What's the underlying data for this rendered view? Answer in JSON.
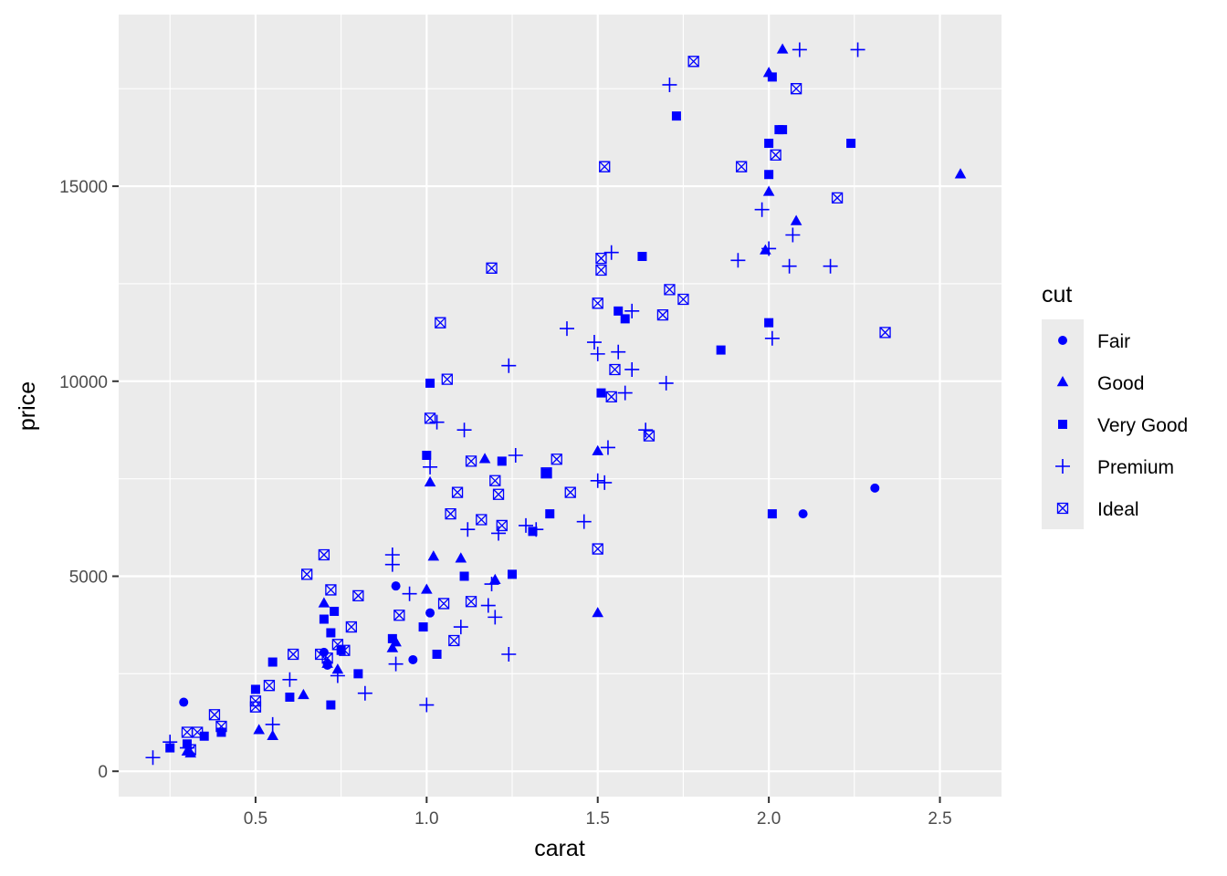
{
  "colors": {
    "panel": "#EBEBEB",
    "grid": "#FFFFFF",
    "point": "#0000FF",
    "tick": "#333333"
  },
  "chart_data": {
    "type": "scatter",
    "title": "",
    "xlabel": "carat",
    "ylabel": "price",
    "xlim": [
      0.1,
      2.68
    ],
    "ylim": [
      -650,
      19400
    ],
    "xticks": [
      0.5,
      1.0,
      1.5,
      2.0,
      2.5
    ],
    "xtick_labels": [
      "0.5",
      "1.0",
      "1.5",
      "2.0",
      "2.5"
    ],
    "yticks": [
      0,
      5000,
      10000,
      15000
    ],
    "ytick_labels": [
      "0",
      "5000",
      "10000",
      "15000"
    ],
    "grid": true,
    "legend": {
      "title": "cut",
      "placement": "right",
      "entries": [
        {
          "label": "Fair",
          "shape": "circle"
        },
        {
          "label": "Good",
          "shape": "triangle"
        },
        {
          "label": "Very Good",
          "shape": "square"
        },
        {
          "label": "Premium",
          "shape": "plus"
        },
        {
          "label": "Ideal",
          "shape": "square-cross"
        }
      ]
    },
    "series": [
      {
        "name": "Fair",
        "shape": "circle",
        "x": [
          0.29,
          2.31,
          2.1,
          0.91,
          0.96,
          1.01,
          0.71,
          0.7
        ],
        "y": [
          1770,
          7260,
          6600,
          4750,
          2860,
          4060,
          2720,
          3050
        ]
      },
      {
        "name": "Good",
        "shape": "triangle",
        "x": [
          2.04,
          2.0,
          2.56,
          2.08,
          1.99,
          2.0,
          1.5,
          1.5,
          1.17,
          1.01,
          1.02,
          1.1,
          1.2,
          0.7,
          0.9,
          0.91,
          0.71,
          0.74,
          0.64,
          0.51,
          0.55,
          0.3,
          0.31,
          1.0
        ],
        "y": [
          18500,
          17900,
          15300,
          14100,
          13350,
          14850,
          8200,
          4050,
          8000,
          7400,
          5500,
          5450,
          4900,
          4300,
          3150,
          3300,
          2750,
          2600,
          1950,
          1050,
          900,
          500,
          450,
          4650
        ]
      },
      {
        "name": "Very Good",
        "shape": "square",
        "x": [
          2.01,
          1.73,
          2.03,
          2.04,
          2.0,
          2.24,
          2.0,
          1.63,
          2.0,
          1.86,
          2.01,
          1.56,
          1.58,
          1.51,
          1.01,
          1.22,
          1.35,
          1.31,
          1.36,
          1.25,
          1.11,
          0.99,
          0.75,
          0.72,
          0.7,
          0.73,
          0.55,
          0.5,
          0.6,
          0.8,
          0.9,
          0.4,
          0.35,
          0.3,
          0.25,
          0.72,
          1.03,
          1.0
        ],
        "y": [
          17800,
          16800,
          16450,
          16450,
          16100,
          16100,
          15300,
          13200,
          11500,
          10800,
          6600,
          11800,
          11600,
          9700,
          9950,
          7950,
          7650,
          6150,
          6600,
          5050,
          5000,
          3700,
          3100,
          1700,
          3900,
          4100,
          2800,
          2100,
          1900,
          2500,
          3400,
          1000,
          900,
          700,
          600,
          3550,
          3000,
          8100
        ]
      },
      {
        "name": "Premium",
        "shape": "plus",
        "x": [
          2.09,
          2.26,
          1.71,
          1.98,
          2.07,
          1.91,
          2.06,
          2.18,
          2.01,
          1.54,
          1.41,
          1.49,
          1.6,
          1.5,
          1.56,
          1.58,
          1.6,
          1.24,
          1.7,
          1.64,
          1.53,
          1.52,
          1.5,
          1.26,
          1.29,
          1.32,
          1.46,
          1.11,
          1.03,
          1.01,
          1.12,
          1.19,
          1.2,
          1.24,
          1.18,
          1.21,
          1.1,
          0.9,
          0.95,
          0.91,
          1.0,
          0.82,
          0.74,
          0.6,
          0.55,
          0.2,
          0.25,
          0.3,
          0.9,
          2.0
        ],
        "y": [
          18500,
          18500,
          17600,
          14400,
          13750,
          13100,
          12950,
          12950,
          11100,
          13300,
          11350,
          11000,
          10300,
          10700,
          10750,
          9700,
          11800,
          10400,
          9950,
          8750,
          8300,
          7400,
          7450,
          8100,
          6300,
          6200,
          6400,
          8750,
          8950,
          7800,
          6200,
          4800,
          3950,
          3000,
          4250,
          6100,
          3700,
          5550,
          4550,
          2750,
          1700,
          2000,
          2450,
          2350,
          1200,
          350,
          750,
          600,
          5300,
          13400
        ]
      },
      {
        "name": "Ideal",
        "shape": "square-cross",
        "x": [
          1.78,
          2.08,
          1.52,
          1.92,
          2.02,
          2.2,
          2.34,
          1.51,
          1.51,
          1.19,
          1.5,
          1.71,
          1.75,
          1.69,
          1.04,
          1.06,
          1.01,
          1.13,
          1.38,
          1.35,
          1.42,
          1.65,
          1.55,
          1.54,
          1.5,
          1.2,
          1.21,
          1.22,
          1.16,
          1.09,
          1.07,
          0.65,
          0.7,
          0.72,
          0.78,
          0.8,
          0.61,
          0.69,
          0.74,
          0.76,
          0.71,
          0.54,
          0.5,
          0.5,
          0.38,
          0.4,
          0.33,
          0.3,
          0.31,
          0.92,
          1.08,
          1.05,
          1.13
        ],
        "y": [
          18200,
          17500,
          15500,
          15500,
          15800,
          14700,
          11250,
          13150,
          12850,
          12900,
          12000,
          12350,
          12100,
          11700,
          11500,
          10050,
          9050,
          7950,
          8000,
          7650,
          7150,
          8600,
          10300,
          9600,
          5700,
          7450,
          7100,
          6300,
          6450,
          7150,
          6600,
          5050,
          5550,
          4650,
          3700,
          4500,
          3000,
          3000,
          3250,
          3100,
          2900,
          2200,
          1800,
          1650,
          1450,
          1150,
          1000,
          1000,
          550,
          4000,
          3350,
          4300,
          4350
        ]
      }
    ]
  }
}
